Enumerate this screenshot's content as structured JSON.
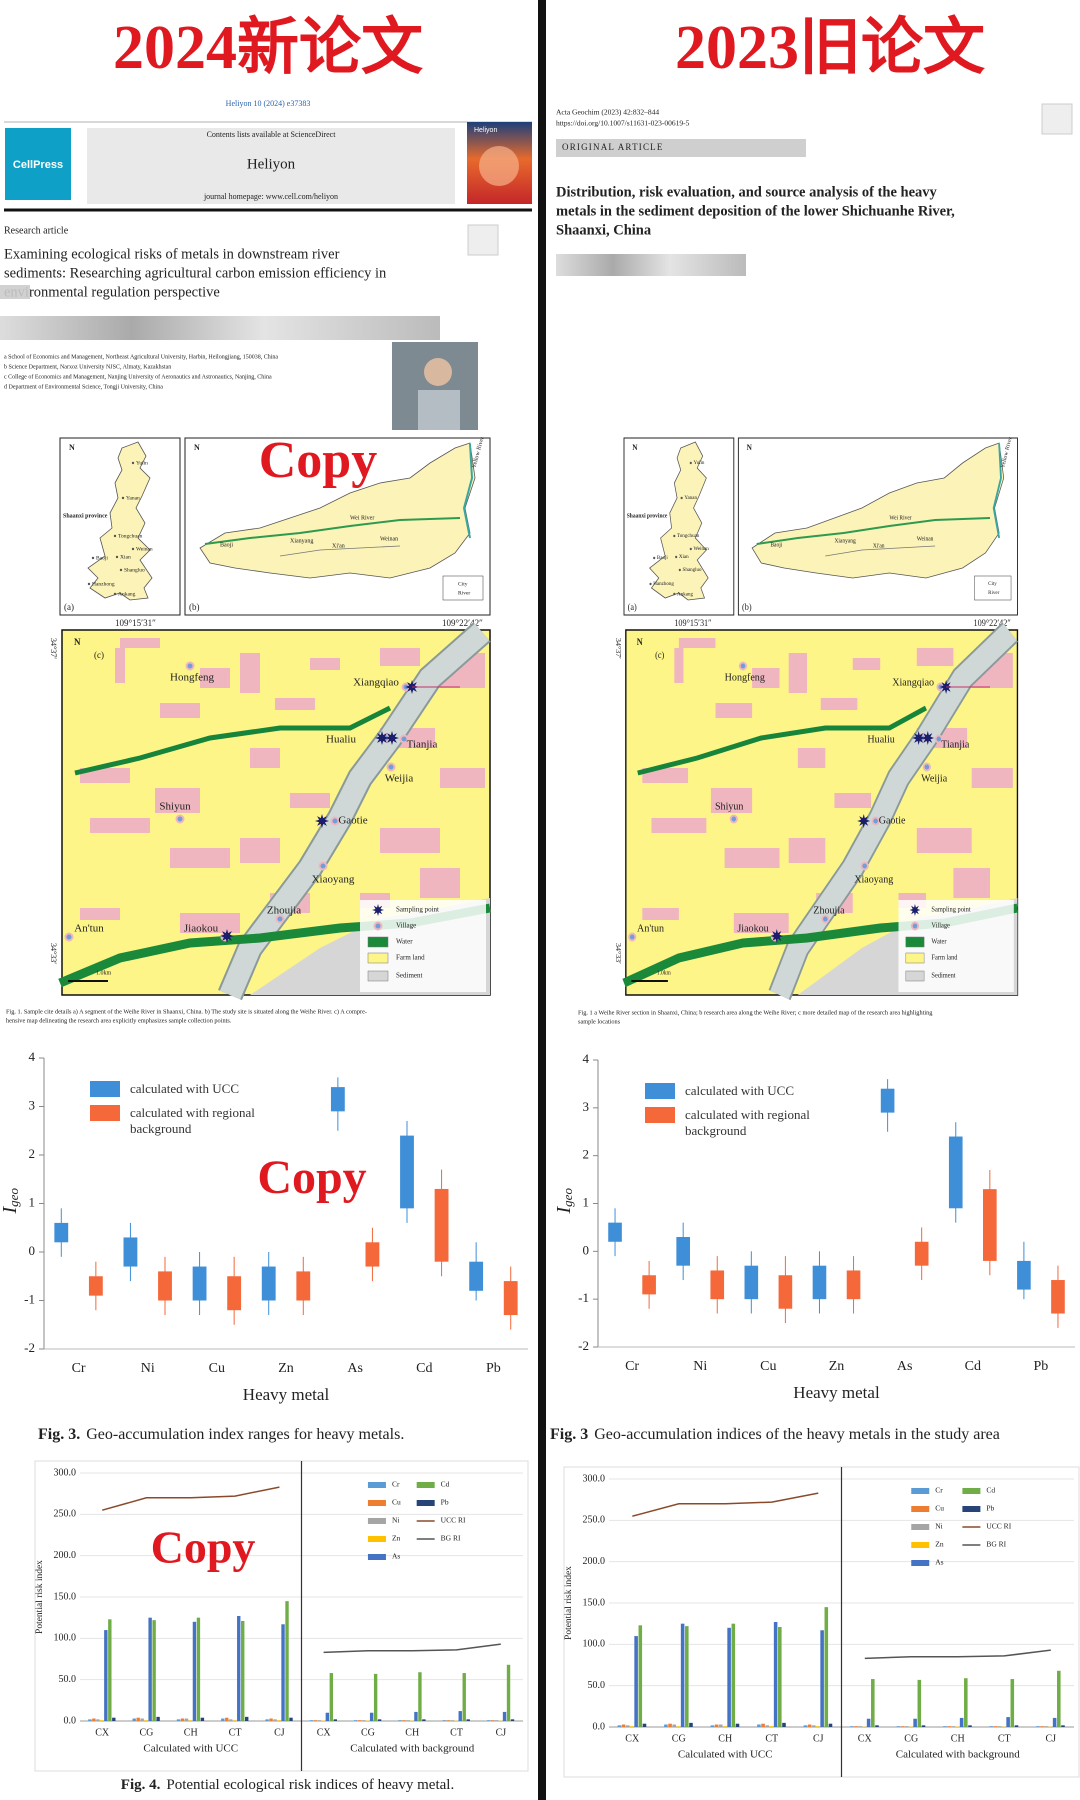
{
  "left": {
    "banner": "2024新论文",
    "journal_ref": "Heliyon 10 (2024) e37383",
    "contents": "Contents lists available at ScienceDirect",
    "journal": "Heliyon",
    "homepage": "journal homepage: www.cell.com/heliyon",
    "publisher": "CellPress",
    "article_type": "Research article",
    "title_lines": [
      "Examining ecological risks of metals in downstream river",
      "sediments: Researching agricultural carbon emission efficiency in",
      "environmental regulation perspective"
    ],
    "affiliations": [
      "a School of Economics and Management, Northeast Agricultural University, Harbin, Heilongjiang, 150038, China",
      "b Science Department, Narxoz University NJSC, Almaty, Kazakhstan",
      "c College of Economics and Management, Nanjing University of Aeronautics and Astronautics, Nanjing, China",
      "d Department of Environmental Science, Tongji University, China"
    ],
    "watermark": "Copy",
    "fig1_caption": [
      "Fig. 1. Sample cite details a) A segment of the Weihe River in Shaanxi, China. b) The study site is situated along the Weihe River. c) A compre-",
      "hensive map delineating the research area explicitly emphasizes sample collection points."
    ],
    "fig3_caption": {
      "label": "Fig. 3.",
      "text": "Geo-accumulation index ranges for heavy metals."
    },
    "fig4_caption": {
      "label": "Fig. 4.",
      "text": "Potential ecological risk indices of heavy metal."
    }
  },
  "right": {
    "banner": "2023旧论文",
    "citation": "Acta Geochim (2023) 42:832–844",
    "doi": "https://doi.org/10.1007/s11631-023-00619-5",
    "section": "ORIGINAL ARTICLE",
    "title_lines": [
      "Distribution, risk evaluation, and source analysis of the heavy",
      "metals in the sediment deposition of the lower Shichuanhe River,",
      "Shaanxi, China"
    ],
    "fig1_caption": [
      "Fig. 1 a Weihe River section in Shaanxi, China; b research area along the Weihe River; c more detailed map of the research area highlighting",
      "sample locations"
    ],
    "fig3_caption": {
      "label": "Fig. 3",
      "text": "Geo-accumulation indices of the heavy metals in the study area"
    }
  },
  "map": {
    "north": "N",
    "panels": [
      "(a)",
      "(b)",
      "(c)"
    ],
    "province": "Shaanxi province",
    "cities": [
      "Yulin",
      "Yanan",
      "Tongchuan",
      "Weinan",
      "Baoji",
      "Xian",
      "Shangluo",
      "Hanzhong",
      "Ankang"
    ],
    "region_labels": [
      "Baoji",
      "Xianyang",
      "Xi'an",
      "Weinan",
      "Wei River",
      "Yellow River"
    ],
    "legend_b": [
      "City",
      "River"
    ],
    "longitudes": [
      "109°15′31″",
      "109°22′42″"
    ],
    "latitudes": [
      "34°37′",
      "34°33′"
    ],
    "places": [
      "Hongfeng",
      "Xiangqiao",
      "Hualiu",
      "Tianjia",
      "Weijia",
      "Shiyun",
      "Gaotie",
      "Xiaoyang",
      "An'tun",
      "Jiaokou",
      "Zhoujia"
    ],
    "legend": [
      "Sampling point",
      "Village",
      "Water",
      "Farm land",
      "Sediment"
    ],
    "scale": "1.0km"
  },
  "chart_data": [
    {
      "type": "box",
      "y_label": "I",
      "y_label_sub": "geo",
      "x_label": "Heavy metal",
      "categories": [
        "Cr",
        "Ni",
        "Cu",
        "Zn",
        "As",
        "Cd",
        "Pb"
      ],
      "ylim": [
        -2,
        4
      ],
      "yticks": [
        -2,
        -1,
        0,
        1,
        2,
        3,
        4
      ],
      "series": [
        {
          "name": "calculated with UCC",
          "color": "#3f8fd8",
          "min": [
            -0.1,
            -0.6,
            -1.3,
            -1.3,
            2.5,
            0.6,
            -1.0
          ],
          "q1": [
            0.2,
            -0.3,
            -1.0,
            -1.0,
            2.9,
            0.9,
            -0.8
          ],
          "q3": [
            0.6,
            0.3,
            -0.3,
            -0.3,
            3.4,
            2.4,
            -0.2
          ],
          "max": [
            0.9,
            0.6,
            0.0,
            0.0,
            3.6,
            2.7,
            0.2
          ]
        },
        {
          "name": "calculated with regional background",
          "color": "#f4683a",
          "min": [
            -1.2,
            -1.3,
            -1.5,
            -1.3,
            -0.6,
            -0.5,
            -1.6
          ],
          "q1": [
            -0.9,
            -1.0,
            -1.2,
            -1.0,
            -0.3,
            -0.2,
            -1.3
          ],
          "q3": [
            -0.5,
            -0.4,
            -0.5,
            -0.4,
            0.2,
            1.3,
            -0.6
          ],
          "max": [
            -0.2,
            -0.1,
            -0.1,
            -0.1,
            0.5,
            1.7,
            -0.3
          ]
        }
      ]
    },
    {
      "type": "bar",
      "y_label": "Potential risk index",
      "categories": [
        "CX",
        "CG",
        "CH",
        "CT",
        "CJ",
        "CX",
        "CG",
        "CH",
        "CT",
        "CJ"
      ],
      "groups": [
        "Calculated with UCC",
        "Calculated with background"
      ],
      "ylim": [
        0,
        300
      ],
      "yticks": [
        {
          "value": 0,
          "label": "0.0"
        },
        {
          "value": 50,
          "label": "50.0"
        },
        {
          "value": 100,
          "label": "100.0"
        },
        {
          "value": 150,
          "label": "150.0"
        },
        {
          "value": 200,
          "label": "200.0"
        },
        {
          "value": 250,
          "label": "250.0"
        },
        {
          "value": 300,
          "label": "300.0"
        }
      ],
      "grid": true,
      "series": [
        {
          "name": "Cr",
          "color": "#5b9bd5",
          "values": [
            2,
            3,
            2,
            3,
            2,
            1,
            1,
            1,
            1,
            1
          ]
        },
        {
          "name": "Cu",
          "color": "#ed7d31",
          "values": [
            3,
            4,
            3,
            4,
            3,
            1,
            1,
            1,
            1,
            1
          ]
        },
        {
          "name": "Ni",
          "color": "#a5a5a5",
          "values": [
            2,
            3,
            3,
            2,
            2,
            1,
            1,
            1,
            1,
            1
          ]
        },
        {
          "name": "Zn",
          "color": "#ffc000",
          "values": [
            1,
            1,
            1,
            1,
            1,
            0.5,
            0.5,
            0.5,
            0.5,
            0.5
          ]
        },
        {
          "name": "As",
          "color": "#4472c4",
          "values": [
            110,
            125,
            120,
            127,
            117,
            10,
            10,
            11,
            12,
            11
          ]
        },
        {
          "name": "Cd",
          "color": "#70ad47",
          "values": [
            123,
            122,
            125,
            121,
            145,
            58,
            57,
            59,
            58,
            68
          ]
        },
        {
          "name": "Pb",
          "color": "#264478",
          "values": [
            4,
            5,
            4,
            5,
            4,
            2,
            2,
            2,
            2,
            2
          ]
        },
        {
          "name": "UCC RI",
          "type": "line",
          "color": "#8a4a2a",
          "values": [
            255,
            270,
            270,
            272,
            283,
            null,
            null,
            null,
            null,
            null
          ]
        },
        {
          "name": "BG RI",
          "type": "line",
          "color": "#555555",
          "values": [
            null,
            null,
            null,
            null,
            null,
            83,
            85,
            85,
            86,
            93
          ]
        }
      ]
    }
  ]
}
